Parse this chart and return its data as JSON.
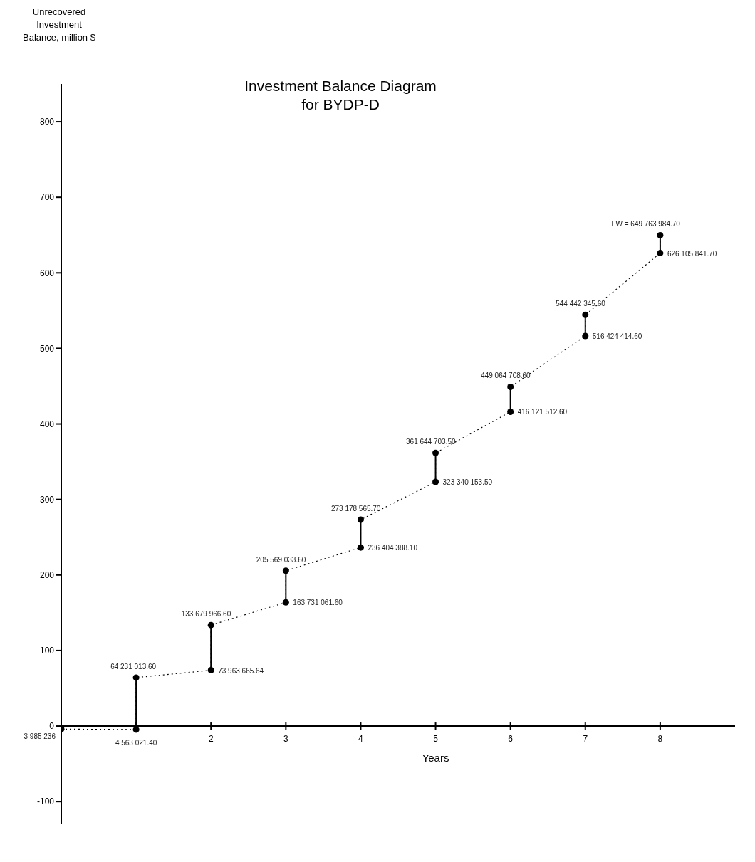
{
  "chart_data": {
    "type": "line",
    "title": "Investment Balance Diagram\nfor BYDP-D",
    "xlabel": "Years",
    "ylabel": "Unrecovered\nInvestment\nBalance, million $",
    "xlim": [
      0,
      9
    ],
    "xticks": [
      {
        "value": 1,
        "label": null
      },
      2,
      3,
      4,
      5,
      6,
      7,
      8
    ],
    "ylim": [
      -130,
      850
    ],
    "yticks": [
      -100,
      0,
      100,
      200,
      300,
      400,
      500,
      600,
      700,
      800
    ],
    "series": [
      {
        "color": "#000000",
        "line_style": "dotted",
        "marker": "circle",
        "x": [
          0,
          1,
          1,
          2,
          2,
          3,
          3,
          4,
          4,
          5,
          5,
          6,
          6,
          7,
          7,
          8,
          8
        ],
        "values": [
          -4.0,
          -4.6,
          64.2,
          74.0,
          133.7,
          163.7,
          205.6,
          236.4,
          273.2,
          323.3,
          361.6,
          416.1,
          449.1,
          516.4,
          544.4,
          626.1,
          649.8
        ]
      }
    ],
    "annotations": [
      {
        "text": "3 985 236",
        "x": 0,
        "y": -4.0
      },
      {
        "text": "4 563 021.40",
        "x": 1,
        "y": -4.6
      },
      {
        "text": "64 231 013.60",
        "x": 1,
        "y": 64.2
      },
      {
        "text": "73 963 665.64",
        "x": 2,
        "y": 74.0
      },
      {
        "text": "133 679 966.60",
        "x": 2,
        "y": 133.7
      },
      {
        "text": "163 731 061.60",
        "x": 3,
        "y": 163.7
      },
      {
        "text": "205 569 033.60",
        "x": 3,
        "y": 205.6
      },
      {
        "text": "236 404 388.10",
        "x": 4,
        "y": 236.4
      },
      {
        "text": "273 178 565.70",
        "x": 4,
        "y": 273.2
      },
      {
        "text": "323 340 153.50",
        "x": 5,
        "y": 323.3
      },
      {
        "text": "361 644 703.50",
        "x": 5,
        "y": 361.6
      },
      {
        "text": "416 121 512.60",
        "x": 6,
        "y": 416.1
      },
      {
        "text": "449 064 708.60",
        "x": 6,
        "y": 449.1
      },
      {
        "text": "516 424 414.60",
        "x": 7,
        "y": 516.4
      },
      {
        "text": "544 442 345.60",
        "x": 7,
        "y": 544.4
      },
      {
        "text": "626 105 841.70",
        "x": 8,
        "y": 626.1
      },
      {
        "text": "FW = 649 763 984.70",
        "x": 8,
        "y": 649.8
      }
    ]
  }
}
